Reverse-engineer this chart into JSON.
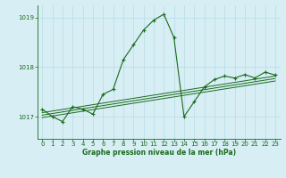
{
  "title": "Graphe pression niveau de la mer (hPa)",
  "bg_color": "#d6eef4",
  "grid_color": "#b8dce6",
  "line_color": "#1a6b1a",
  "xlim": [
    -0.5,
    23.5
  ],
  "ylim": [
    1016.55,
    1019.25
  ],
  "yticks": [
    1017,
    1018,
    1019
  ],
  "xticks": [
    0,
    1,
    2,
    3,
    4,
    5,
    6,
    7,
    8,
    9,
    10,
    11,
    12,
    13,
    14,
    15,
    16,
    17,
    18,
    19,
    20,
    21,
    22,
    23
  ],
  "main_x": [
    0,
    1,
    2,
    3,
    4,
    5,
    6,
    7,
    8,
    9,
    10,
    11,
    12,
    13,
    14,
    15,
    16,
    17,
    18,
    19,
    20,
    21,
    22,
    23
  ],
  "main_y": [
    1017.15,
    1017.0,
    1016.9,
    1017.2,
    1017.15,
    1017.05,
    1017.45,
    1017.55,
    1018.15,
    1018.45,
    1018.75,
    1018.95,
    1019.07,
    1018.6,
    1017.0,
    1017.3,
    1017.6,
    1017.75,
    1017.82,
    1017.78,
    1017.85,
    1017.78,
    1017.9,
    1017.84
  ],
  "trend_lines": [
    [
      [
        0,
        23
      ],
      [
        1016.98,
        1017.72
      ]
    ],
    [
      [
        0,
        23
      ],
      [
        1017.03,
        1017.77
      ]
    ],
    [
      [
        0,
        23
      ],
      [
        1017.08,
        1017.82
      ]
    ]
  ],
  "title_fontsize": 5.5,
  "tick_fontsize": 5.0
}
